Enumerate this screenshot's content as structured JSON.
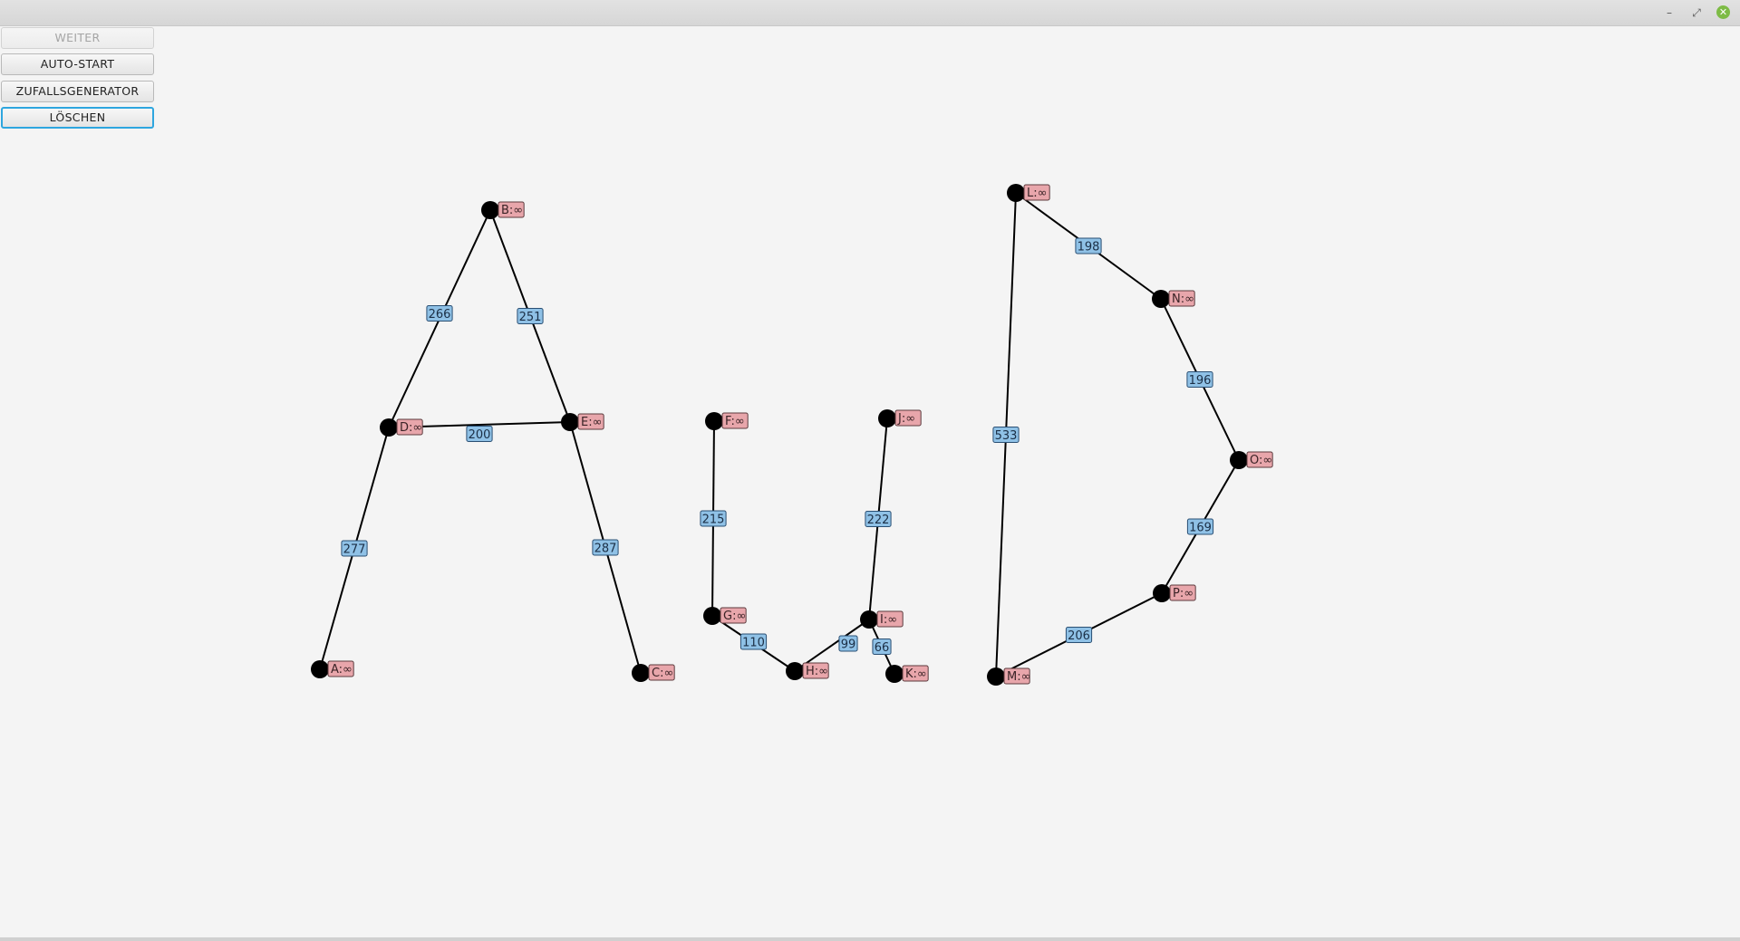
{
  "window": {
    "minimize_icon": "minimize-icon",
    "restore_icon": "restore-icon",
    "close_icon": "close-icon",
    "minimize_glyph": "–",
    "restore_glyph": "⤢",
    "close_glyph": "✕"
  },
  "buttons": {
    "weiter": "WEITER",
    "auto_start": "AUTO-START",
    "zufallsgenerator": "ZUFALLSGENERATOR",
    "loeschen": "LÖSCHEN"
  },
  "colors": {
    "node": "#000000",
    "edge": "#000000",
    "node_label_bg": "#e8a6ab",
    "edge_label_bg": "#8fc1e6"
  },
  "graph": {
    "nodes": [
      {
        "id": "A",
        "label": "A:∞"
      },
      {
        "id": "B",
        "label": "B:∞"
      },
      {
        "id": "C",
        "label": "C:∞"
      },
      {
        "id": "D",
        "label": "D:∞"
      },
      {
        "id": "E",
        "label": "E:∞"
      },
      {
        "id": "F",
        "label": "F:∞"
      },
      {
        "id": "G",
        "label": "G:∞"
      },
      {
        "id": "H",
        "label": "H:∞"
      },
      {
        "id": "I",
        "label": "I:∞"
      },
      {
        "id": "J",
        "label": "J:∞"
      },
      {
        "id": "K",
        "label": "K:∞"
      },
      {
        "id": "L",
        "label": "L:∞"
      },
      {
        "id": "M",
        "label": "M:∞"
      },
      {
        "id": "N",
        "label": "N:∞"
      },
      {
        "id": "O",
        "label": "O:∞"
      },
      {
        "id": "P",
        "label": "P:∞"
      }
    ],
    "edges": [
      {
        "from": "B",
        "to": "D",
        "weight": "266"
      },
      {
        "from": "B",
        "to": "E",
        "weight": "251"
      },
      {
        "from": "D",
        "to": "E",
        "weight": "200"
      },
      {
        "from": "D",
        "to": "A",
        "weight": "277"
      },
      {
        "from": "E",
        "to": "C",
        "weight": "287"
      },
      {
        "from": "F",
        "to": "G",
        "weight": "215"
      },
      {
        "from": "G",
        "to": "H",
        "weight": "110"
      },
      {
        "from": "H",
        "to": "I",
        "weight": "99"
      },
      {
        "from": "I",
        "to": "J",
        "weight": "222"
      },
      {
        "from": "I",
        "to": "K",
        "weight": "66"
      },
      {
        "from": "L",
        "to": "N",
        "weight": "198"
      },
      {
        "from": "L",
        "to": "M",
        "weight": "533"
      },
      {
        "from": "N",
        "to": "O",
        "weight": "196"
      },
      {
        "from": "O",
        "to": "P",
        "weight": "169"
      },
      {
        "from": "P",
        "to": "M",
        "weight": "206"
      }
    ]
  }
}
